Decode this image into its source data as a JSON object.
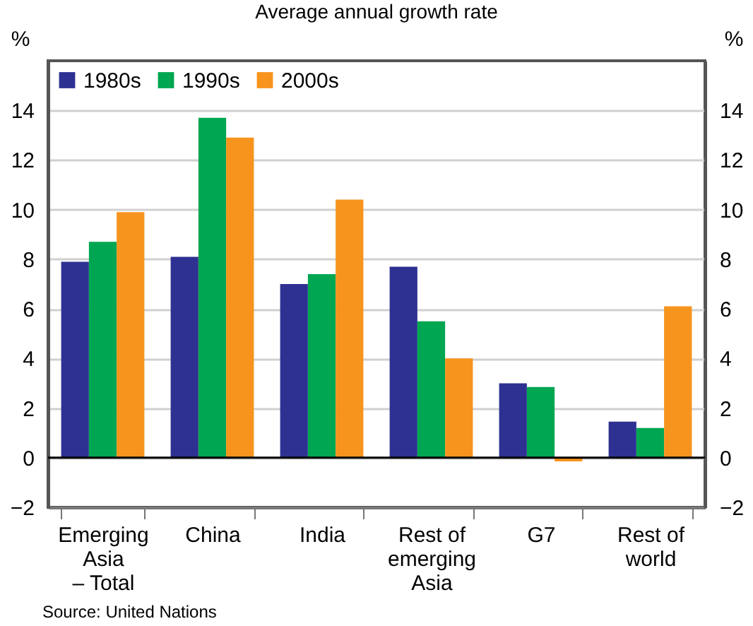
{
  "chart_data": {
    "type": "bar",
    "title": "Average annual growth rate",
    "ylabel": "%",
    "y2label": "%",
    "categories": [
      "Emerging Asia – Total",
      "China",
      "India",
      "Rest of emerging Asia",
      "G7",
      "Rest of world"
    ],
    "series": [
      {
        "name": "1980s",
        "color": "#2e3192",
        "values": [
          7.9,
          8.1,
          7.0,
          7.7,
          3.0,
          1.45
        ]
      },
      {
        "name": "1990s",
        "color": "#00a651",
        "values": [
          8.7,
          13.7,
          7.4,
          5.5,
          2.85,
          1.2
        ]
      },
      {
        "name": "2000s",
        "color": "#f7941d",
        "values": [
          9.9,
          12.9,
          10.4,
          4.0,
          -0.15,
          6.1
        ]
      }
    ],
    "ylim": [
      -2,
      16
    ],
    "yticks": [
      -2,
      0,
      2,
      4,
      6,
      8,
      10,
      12,
      14
    ],
    "y2lim": [
      -2,
      16
    ],
    "y2ticks": [
      -2,
      0,
      2,
      4,
      6,
      8,
      10,
      12,
      14
    ],
    "ref_lines": [
      {
        "axis": "y",
        "value": 0,
        "color": "#000000"
      }
    ],
    "grid": "y",
    "legend": "top left",
    "annotations": [
      "Source: United Nations"
    ]
  }
}
